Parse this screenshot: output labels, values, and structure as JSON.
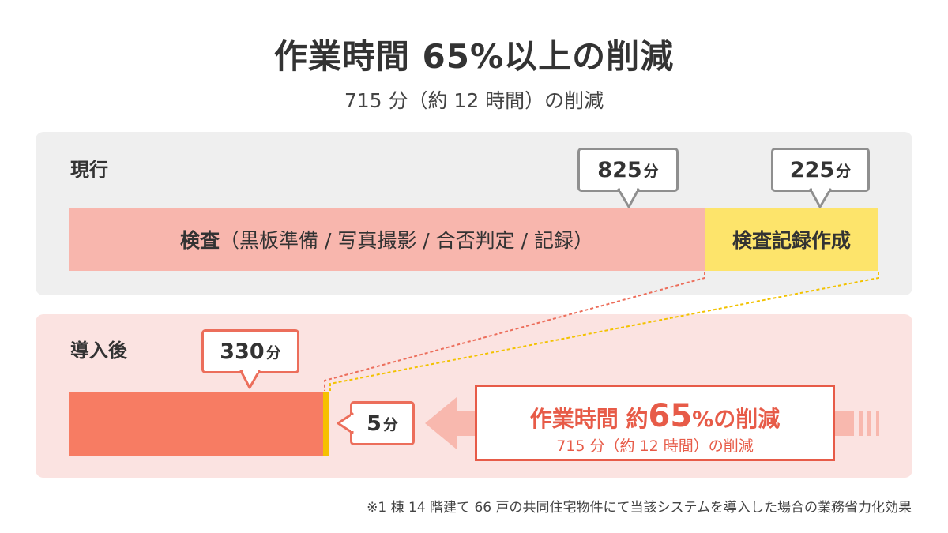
{
  "title": "作業時間 65%以上の削減",
  "subtitle": "715 分（約 12 時間）の削減",
  "colors": {
    "current_inspection": "#f8b6ad",
    "current_record": "#fde46b",
    "after_inspection": "#f77c63",
    "after_record": "#f6c000",
    "accent_red": "#e75b48",
    "callout_gray": "#8f8f8f",
    "panel_current_bg": "#efefef",
    "panel_after_bg": "#fbe3e1"
  },
  "chart_data": {
    "type": "bar",
    "orientation": "horizontal",
    "stacked": true,
    "unit": "分",
    "categories": [
      "現行",
      "導入後"
    ],
    "series": [
      {
        "name": "検査（黒板準備 / 写真撮影 / 合否判定 / 記録）",
        "values": [
          825,
          330
        ]
      },
      {
        "name": "検査記録作成",
        "values": [
          225,
          5
        ]
      }
    ],
    "callouts": {
      "current_inspection": {
        "value": "825",
        "unit": "分"
      },
      "current_record": {
        "value": "225",
        "unit": "分"
      },
      "after_inspection": {
        "value": "330",
        "unit": "分"
      },
      "after_record": {
        "value": "5",
        "unit": "分"
      }
    },
    "bar_labels": {
      "inspection_bold": "検査",
      "inspection_detail": "（黒板準備 / 写真撮影 / 合否判定 / 記録）",
      "record": "検査記録作成"
    },
    "reduction": {
      "prefix": "作業時間 約",
      "percent": "65",
      "suffix_pct": "%",
      "suffix": "の削減",
      "detail": "715 分（約 12 時間）の削減"
    }
  },
  "panels": {
    "current_label": "現行",
    "after_label": "導入後"
  },
  "footnote": "※1 棟 14 階建て 66 戸の共同住宅物件にて当該システムを導入した場合の業務省力化効果"
}
